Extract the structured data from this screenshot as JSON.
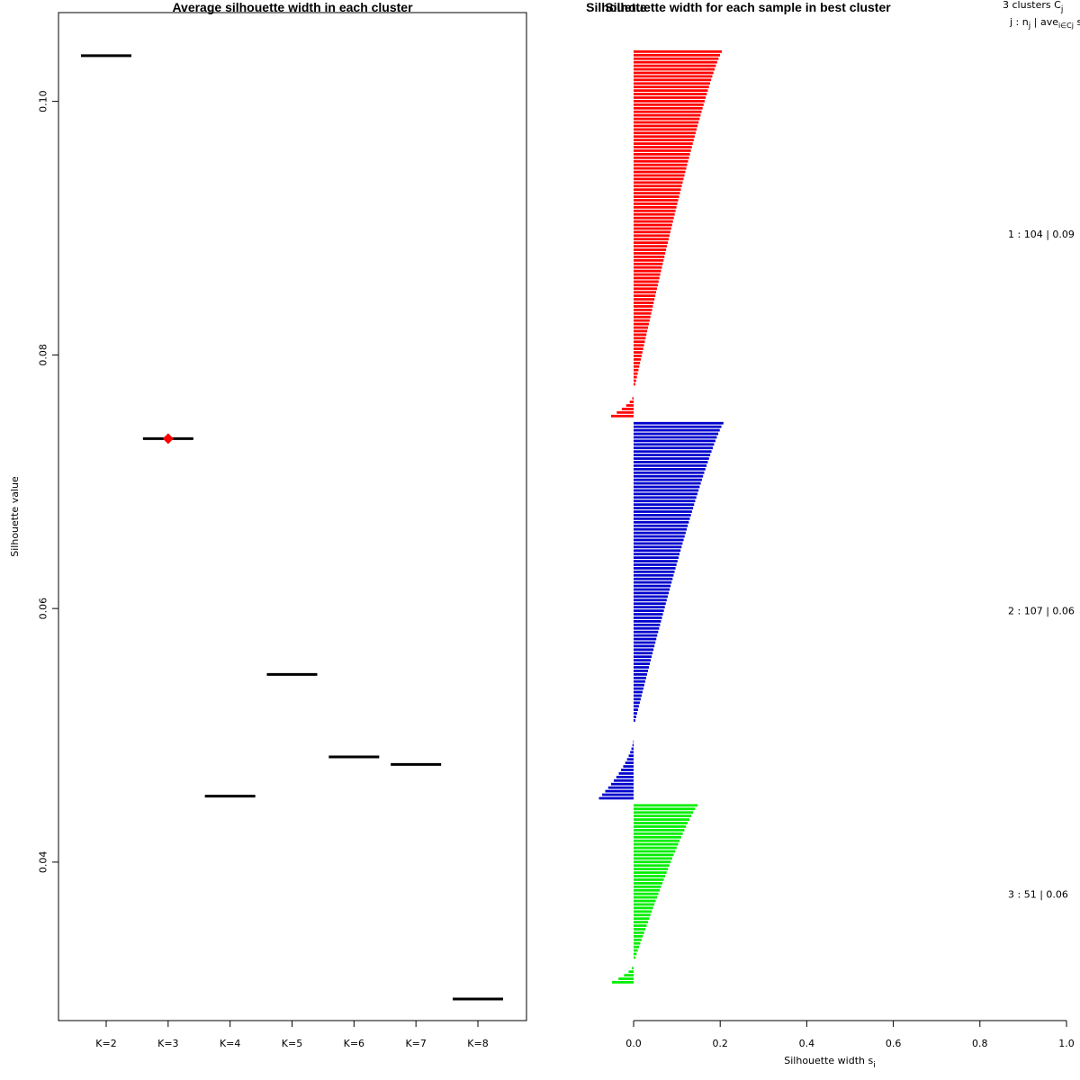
{
  "chart_data": [
    {
      "type": "line",
      "title": "Average silhouette width in each cluster",
      "ylabel": "Silhouette value",
      "xlabel": "",
      "categories": [
        "K=2",
        "K=3",
        "K=4",
        "K=5",
        "K=6",
        "K=7",
        "K=8"
      ],
      "values": [
        0.1036,
        0.0734,
        0.0452,
        0.0548,
        0.0483,
        0.0477,
        0.0292
      ],
      "highlight": {
        "category": "K=3",
        "value": 0.0734,
        "color": "#ff0000"
      },
      "yticks": [
        "0.04",
        "0.06",
        "0.08",
        "0.10"
      ],
      "ylim": [
        0.0275,
        0.107
      ],
      "grid": false,
      "colors": {
        "segment": "#000000",
        "highlight": "#ff0000"
      }
    },
    {
      "type": "bar",
      "orientation": "horizontal",
      "title": "Silhouette width for each sample in best cluster",
      "title_overlap_text": "Silhouette",
      "xlabel": "Silhouette width s",
      "xlabel_subscript": "i",
      "xticks": [
        "0.0",
        "0.2",
        "0.4",
        "0.6",
        "0.8",
        "1.0"
      ],
      "xlim": [
        0,
        1
      ],
      "header_line1": "3  clusters  C",
      "header_line1_sub": "j",
      "header_line2": "j :  n",
      "header_line2_sub1": "j",
      "header_line2_mid": " | ave",
      "header_line2_sub2": "i∈Cj",
      "header_line2_end": "  s",
      "series": [
        {
          "name": "1 :  104  |  0.09",
          "color": "#ff0000",
          "n": 104,
          "max": 0.208,
          "min": -0.052,
          "neg": 7,
          "zero": 2
        },
        {
          "name": "2 :  107  |  0.06",
          "color": "#0000cd",
          "n": 107,
          "max": 0.212,
          "min": -0.08,
          "neg": 18,
          "zero": 4
        },
        {
          "name": "3 :  51  |  0.06",
          "color": "#00ee00",
          "n": 51,
          "max": 0.15,
          "min": -0.05,
          "neg": 6,
          "zero": 1
        }
      ]
    }
  ]
}
